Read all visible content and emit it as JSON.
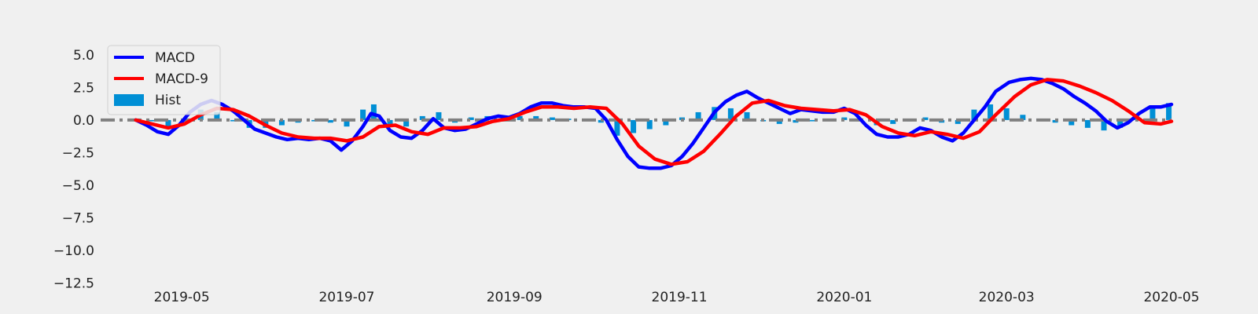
{
  "chart_data": {
    "type": "line",
    "x_type": "date",
    "xlim": [
      "2019-04-01",
      "2020-05-01"
    ],
    "ylim": [
      -12.6,
      6.2
    ],
    "x_ticks": [
      "2019-05-01",
      "2019-07-01",
      "2019-09-01",
      "2019-11-01",
      "2020-01-01",
      "2020-03-01",
      "2020-05-01"
    ],
    "x_tick_labels": [
      "2019-05",
      "2019-07",
      "2019-09",
      "2019-11",
      "2020-01",
      "2020-03",
      "2020-05"
    ],
    "y_ticks": [
      5.0,
      2.5,
      0.0,
      -2.5,
      -5.0,
      -7.5,
      -10.0,
      -12.5
    ],
    "y_tick_labels": [
      "5.0",
      "2.5",
      "0.0",
      "−2.5",
      "−5.0",
      "−7.5",
      "−10.0",
      "−12.5"
    ],
    "grid": false,
    "legend_position": "upper-left",
    "zero_line": {
      "y": 0,
      "style": "dash-dot",
      "color": "#808080"
    },
    "series": [
      {
        "name": "MACD",
        "kind": "line",
        "color": "#0000ff",
        "points": [
          [
            "2019-04-14",
            0.0
          ],
          [
            "2019-04-18",
            -0.4
          ],
          [
            "2019-04-22",
            -0.9
          ],
          [
            "2019-04-26",
            -1.1
          ],
          [
            "2019-04-30",
            -0.4
          ],
          [
            "2019-05-04",
            0.6
          ],
          [
            "2019-05-08",
            1.2
          ],
          [
            "2019-05-12",
            1.5
          ],
          [
            "2019-05-16",
            1.2
          ],
          [
            "2019-05-20",
            0.7
          ],
          [
            "2019-05-24",
            0.0
          ],
          [
            "2019-05-28",
            -0.7
          ],
          [
            "2019-06-01",
            -1.0
          ],
          [
            "2019-06-05",
            -1.3
          ],
          [
            "2019-06-09",
            -1.5
          ],
          [
            "2019-06-13",
            -1.4
          ],
          [
            "2019-06-17",
            -1.5
          ],
          [
            "2019-06-21",
            -1.4
          ],
          [
            "2019-06-25",
            -1.6
          ],
          [
            "2019-06-29",
            -2.3
          ],
          [
            "2019-07-03",
            -1.6
          ],
          [
            "2019-07-07",
            -0.5
          ],
          [
            "2019-07-10",
            0.5
          ],
          [
            "2019-07-13",
            0.3
          ],
          [
            "2019-07-17",
            -0.8
          ],
          [
            "2019-07-21",
            -1.3
          ],
          [
            "2019-07-25",
            -1.4
          ],
          [
            "2019-07-29",
            -0.8
          ],
          [
            "2019-08-02",
            0.1
          ],
          [
            "2019-08-06",
            -0.6
          ],
          [
            "2019-08-10",
            -0.8
          ],
          [
            "2019-08-14",
            -0.7
          ],
          [
            "2019-08-18",
            -0.3
          ],
          [
            "2019-08-22",
            0.1
          ],
          [
            "2019-08-26",
            0.3
          ],
          [
            "2019-08-30",
            0.2
          ],
          [
            "2019-09-03",
            0.5
          ],
          [
            "2019-09-07",
            1.0
          ],
          [
            "2019-09-11",
            1.3
          ],
          [
            "2019-09-15",
            1.3
          ],
          [
            "2019-09-19",
            1.1
          ],
          [
            "2019-09-23",
            1.0
          ],
          [
            "2019-09-27",
            1.0
          ],
          [
            "2019-10-01",
            0.9
          ],
          [
            "2019-10-05",
            0.0
          ],
          [
            "2019-10-09",
            -1.5
          ],
          [
            "2019-10-13",
            -2.8
          ],
          [
            "2019-10-17",
            -3.6
          ],
          [
            "2019-10-21",
            -3.7
          ],
          [
            "2019-10-25",
            -3.7
          ],
          [
            "2019-10-29",
            -3.5
          ],
          [
            "2019-11-02",
            -2.8
          ],
          [
            "2019-11-06",
            -1.8
          ],
          [
            "2019-11-10",
            -0.6
          ],
          [
            "2019-11-14",
            0.6
          ],
          [
            "2019-11-18",
            1.4
          ],
          [
            "2019-11-22",
            1.9
          ],
          [
            "2019-11-26",
            2.2
          ],
          [
            "2019-11-30",
            1.7
          ],
          [
            "2019-12-04",
            1.3
          ],
          [
            "2019-12-08",
            0.9
          ],
          [
            "2019-12-12",
            0.5
          ],
          [
            "2019-12-16",
            0.8
          ],
          [
            "2019-12-20",
            0.7
          ],
          [
            "2019-12-24",
            0.6
          ],
          [
            "2019-12-28",
            0.6
          ],
          [
            "2020-01-01",
            0.9
          ],
          [
            "2020-01-05",
            0.5
          ],
          [
            "2020-01-09",
            -0.4
          ],
          [
            "2020-01-13",
            -1.1
          ],
          [
            "2020-01-17",
            -1.3
          ],
          [
            "2020-01-21",
            -1.3
          ],
          [
            "2020-01-25",
            -1.1
          ],
          [
            "2020-01-29",
            -0.6
          ],
          [
            "2020-02-02",
            -0.8
          ],
          [
            "2020-02-06",
            -1.3
          ],
          [
            "2020-02-10",
            -1.6
          ],
          [
            "2020-02-14",
            -1.0
          ],
          [
            "2020-02-18",
            0.0
          ],
          [
            "2020-02-22",
            1.0
          ],
          [
            "2020-02-26",
            2.2
          ],
          [
            "2020-03-02",
            2.9
          ],
          [
            "2020-03-06",
            3.1
          ],
          [
            "2020-03-10",
            3.2
          ],
          [
            "2020-03-14",
            3.1
          ],
          [
            "2020-03-18",
            2.8
          ],
          [
            "2020-03-22",
            2.4
          ],
          [
            "2020-03-26",
            1.8
          ],
          [
            "2020-03-30",
            1.3
          ],
          [
            "2020-04-03",
            0.7
          ],
          [
            "2020-04-07",
            -0.1
          ],
          [
            "2020-04-11",
            -0.6
          ],
          [
            "2020-04-15",
            -0.2
          ],
          [
            "2020-04-19",
            0.5
          ],
          [
            "2020-04-23",
            1.0
          ],
          [
            "2020-04-27",
            1.0
          ],
          [
            "2020-05-01",
            1.2
          ]
        ]
      },
      {
        "name": "MACD-9",
        "kind": "line",
        "color": "#ff0000",
        "points": [
          [
            "2019-04-14",
            0.0
          ],
          [
            "2019-04-20",
            -0.3
          ],
          [
            "2019-04-26",
            -0.6
          ],
          [
            "2019-05-02",
            -0.3
          ],
          [
            "2019-05-08",
            0.4
          ],
          [
            "2019-05-14",
            0.9
          ],
          [
            "2019-05-20",
            0.8
          ],
          [
            "2019-05-26",
            0.3
          ],
          [
            "2019-06-01",
            -0.4
          ],
          [
            "2019-06-07",
            -1.0
          ],
          [
            "2019-06-13",
            -1.3
          ],
          [
            "2019-06-19",
            -1.4
          ],
          [
            "2019-06-25",
            -1.4
          ],
          [
            "2019-07-01",
            -1.6
          ],
          [
            "2019-07-07",
            -1.3
          ],
          [
            "2019-07-13",
            -0.5
          ],
          [
            "2019-07-19",
            -0.4
          ],
          [
            "2019-07-25",
            -0.9
          ],
          [
            "2019-07-31",
            -1.1
          ],
          [
            "2019-08-06",
            -0.6
          ],
          [
            "2019-08-12",
            -0.6
          ],
          [
            "2019-08-18",
            -0.5
          ],
          [
            "2019-08-24",
            -0.1
          ],
          [
            "2019-08-30",
            0.1
          ],
          [
            "2019-09-05",
            0.6
          ],
          [
            "2019-09-11",
            1.0
          ],
          [
            "2019-09-17",
            1.0
          ],
          [
            "2019-09-23",
            0.9
          ],
          [
            "2019-09-29",
            1.0
          ],
          [
            "2019-10-05",
            0.9
          ],
          [
            "2019-10-11",
            -0.3
          ],
          [
            "2019-10-17",
            -2.0
          ],
          [
            "2019-10-23",
            -3.0
          ],
          [
            "2019-10-29",
            -3.4
          ],
          [
            "2019-11-04",
            -3.2
          ],
          [
            "2019-11-10",
            -2.4
          ],
          [
            "2019-11-16",
            -1.1
          ],
          [
            "2019-11-22",
            0.3
          ],
          [
            "2019-11-28",
            1.3
          ],
          [
            "2019-12-04",
            1.5
          ],
          [
            "2019-12-10",
            1.1
          ],
          [
            "2019-12-16",
            0.9
          ],
          [
            "2019-12-22",
            0.8
          ],
          [
            "2019-12-28",
            0.7
          ],
          [
            "2020-01-03",
            0.8
          ],
          [
            "2020-01-09",
            0.4
          ],
          [
            "2020-01-15",
            -0.5
          ],
          [
            "2020-01-21",
            -1.0
          ],
          [
            "2020-01-27",
            -1.2
          ],
          [
            "2020-02-02",
            -0.9
          ],
          [
            "2020-02-08",
            -1.1
          ],
          [
            "2020-02-14",
            -1.4
          ],
          [
            "2020-02-20",
            -0.9
          ],
          [
            "2020-02-26",
            0.4
          ],
          [
            "2020-03-04",
            1.8
          ],
          [
            "2020-03-10",
            2.7
          ],
          [
            "2020-03-16",
            3.1
          ],
          [
            "2020-03-22",
            3.0
          ],
          [
            "2020-03-28",
            2.6
          ],
          [
            "2020-04-03",
            2.1
          ],
          [
            "2020-04-09",
            1.5
          ],
          [
            "2020-04-15",
            0.7
          ],
          [
            "2020-04-21",
            -0.2
          ],
          [
            "2020-04-27",
            -0.3
          ],
          [
            "2020-05-01",
            -0.1
          ]
        ]
      },
      {
        "name": "Hist",
        "kind": "bar",
        "color": "#008fd5",
        "points": [
          [
            "2019-04-20",
            -0.1
          ],
          [
            "2019-04-26",
            -0.5
          ],
          [
            "2019-05-02",
            -0.1
          ],
          [
            "2019-05-08",
            0.8
          ],
          [
            "2019-05-14",
            0.6
          ],
          [
            "2019-05-20",
            -0.1
          ],
          [
            "2019-05-26",
            -0.6
          ],
          [
            "2019-06-01",
            -0.6
          ],
          [
            "2019-06-07",
            -0.4
          ],
          [
            "2019-06-13",
            -0.2
          ],
          [
            "2019-06-19",
            -0.1
          ],
          [
            "2019-06-25",
            -0.2
          ],
          [
            "2019-07-01",
            -0.5
          ],
          [
            "2019-07-07",
            0.8
          ],
          [
            "2019-07-11",
            1.2
          ],
          [
            "2019-07-17",
            -0.4
          ],
          [
            "2019-07-23",
            -0.5
          ],
          [
            "2019-07-29",
            0.3
          ],
          [
            "2019-08-04",
            0.6
          ],
          [
            "2019-08-10",
            -0.2
          ],
          [
            "2019-08-16",
            0.2
          ],
          [
            "2019-08-22",
            0.3
          ],
          [
            "2019-08-28",
            0.2
          ],
          [
            "2019-09-03",
            0.3
          ],
          [
            "2019-09-09",
            0.3
          ],
          [
            "2019-09-15",
            0.2
          ],
          [
            "2019-09-21",
            0.1
          ],
          [
            "2019-09-27",
            0.1
          ],
          [
            "2019-10-03",
            -0.2
          ],
          [
            "2019-10-09",
            -1.2
          ],
          [
            "2019-10-15",
            -1.0
          ],
          [
            "2019-10-21",
            -0.7
          ],
          [
            "2019-10-27",
            -0.4
          ],
          [
            "2019-11-02",
            0.2
          ],
          [
            "2019-11-08",
            0.6
          ],
          [
            "2019-11-14",
            1.0
          ],
          [
            "2019-11-20",
            0.9
          ],
          [
            "2019-11-26",
            0.6
          ],
          [
            "2019-12-02",
            -0.1
          ],
          [
            "2019-12-08",
            -0.3
          ],
          [
            "2019-12-14",
            -0.2
          ],
          [
            "2019-12-20",
            -0.1
          ],
          [
            "2019-12-26",
            0.1
          ],
          [
            "2020-01-01",
            0.2
          ],
          [
            "2020-01-07",
            -0.1
          ],
          [
            "2020-01-13",
            -0.4
          ],
          [
            "2020-01-19",
            -0.3
          ],
          [
            "2020-01-25",
            -0.1
          ],
          [
            "2020-01-31",
            0.2
          ],
          [
            "2020-02-06",
            -0.2
          ],
          [
            "2020-02-12",
            -0.3
          ],
          [
            "2020-02-18",
            0.8
          ],
          [
            "2020-02-24",
            1.2
          ],
          [
            "2020-03-01",
            0.9
          ],
          [
            "2020-03-07",
            0.4
          ],
          [
            "2020-03-13",
            0.1
          ],
          [
            "2020-03-19",
            -0.2
          ],
          [
            "2020-03-25",
            -0.4
          ],
          [
            "2020-03-31",
            -0.6
          ],
          [
            "2020-04-06",
            -0.8
          ],
          [
            "2020-04-12",
            -0.6
          ],
          [
            "2020-04-18",
            0.3
          ],
          [
            "2020-04-24",
            1.1
          ],
          [
            "2020-04-30",
            1.3
          ]
        ]
      }
    ]
  }
}
